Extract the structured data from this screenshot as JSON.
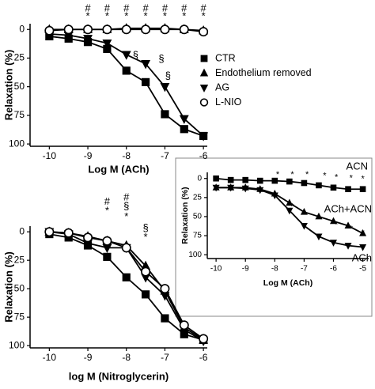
{
  "chart_data": [
    {
      "type": "line",
      "x_label": "Log M (ACh)",
      "y_label": "Relaxation (%)",
      "xlim": [
        -10.5,
        -5.9
      ],
      "xticks": [
        -10,
        -9,
        -8,
        -7,
        -6
      ],
      "ylim": [
        -5,
        102
      ],
      "yticks": [
        0,
        25,
        50,
        75,
        100
      ],
      "y_reversed": true,
      "legend": "right",
      "x": [
        -10,
        -9.5,
        -9,
        -8.5,
        -8,
        -7.5,
        -7,
        -6.5,
        -6
      ],
      "series": [
        {
          "name": "CTR",
          "marker": "square",
          "color": "#000000",
          "values": [
            6,
            8,
            11,
            17,
            36,
            46,
            74,
            87,
            93
          ]
        },
        {
          "name": "Endothelium removed",
          "marker": "triangle-up",
          "color": "#000000",
          "values": [
            0,
            0,
            0,
            0,
            -1,
            -1,
            -1,
            0,
            1
          ]
        },
        {
          "name": "AG",
          "marker": "triangle-down",
          "color": "#000000",
          "values": [
            4,
            5,
            8,
            12,
            22,
            30,
            50,
            78,
            93
          ]
        },
        {
          "name": "L-NIO",
          "marker": "circle",
          "color": "#000000",
          "values": [
            1,
            0,
            0,
            0,
            0,
            0,
            0,
            0,
            2
          ]
        }
      ],
      "annotations": [
        {
          "text": "#",
          "x": -9,
          "y": -18
        },
        {
          "text": "*",
          "x": -9,
          "y": -11
        },
        {
          "text": "#",
          "x": -8.5,
          "y": -18
        },
        {
          "text": "*",
          "x": -8.5,
          "y": -11
        },
        {
          "text": "#",
          "x": -8,
          "y": -18
        },
        {
          "text": "*",
          "x": -8,
          "y": -11
        },
        {
          "text": "#",
          "x": -7.5,
          "y": -18
        },
        {
          "text": "*",
          "x": -7.5,
          "y": -11
        },
        {
          "text": "#",
          "x": -7,
          "y": -18
        },
        {
          "text": "*",
          "x": -7,
          "y": -11
        },
        {
          "text": "#",
          "x": -6.5,
          "y": -18
        },
        {
          "text": "*",
          "x": -6.5,
          "y": -11
        },
        {
          "text": "#",
          "x": -6,
          "y": -18
        },
        {
          "text": "*",
          "x": -6,
          "y": -11
        },
        {
          "text": "§",
          "x": -7.76,
          "y": 23
        },
        {
          "text": "§",
          "x": -7.09,
          "y": 26
        },
        {
          "text": "§",
          "x": -6.92,
          "y": 41
        }
      ]
    },
    {
      "type": "line",
      "x_label": "log M (Nitroglycerin)",
      "y_label": "Relaxation (%)",
      "xlim": [
        -10.5,
        -5.9
      ],
      "xticks": [
        -10,
        -9,
        -8,
        -7,
        -6
      ],
      "ylim": [
        -5,
        102
      ],
      "yticks": [
        0,
        25,
        50,
        75,
        100
      ],
      "y_reversed": true,
      "x": [
        -10,
        -9.5,
        -9,
        -8.5,
        -8,
        -7.5,
        -7,
        -6.5,
        -6
      ],
      "series": [
        {
          "name": "CTR",
          "marker": "square",
          "color": "#000000",
          "values": [
            2,
            5,
            12,
            22,
            40,
            55,
            76,
            90,
            95
          ]
        },
        {
          "name": "Endothelium removed",
          "marker": "triangle-up",
          "color": "#000000",
          "values": [
            0,
            1,
            4,
            8,
            12,
            30,
            52,
            84,
            95
          ]
        },
        {
          "name": "AG",
          "marker": "triangle-down",
          "color": "#000000",
          "values": [
            0,
            2,
            10,
            14,
            14,
            40,
            56,
            86,
            96
          ]
        },
        {
          "name": "L-NIO",
          "marker": "circle",
          "color": "#000000",
          "values": [
            0,
            1,
            5,
            8,
            14,
            35,
            50,
            82,
            94
          ]
        }
      ],
      "annotations": [
        {
          "text": "#",
          "x": -8.5,
          "y": -26
        },
        {
          "text": "*",
          "x": -8.5,
          "y": -18
        },
        {
          "text": "#",
          "x": -8,
          "y": -30
        },
        {
          "text": "§",
          "x": -8,
          "y": -22
        },
        {
          "text": "*",
          "x": -8,
          "y": -13
        },
        {
          "text": "§",
          "x": -7.5,
          "y": -3
        },
        {
          "text": "*",
          "x": -7.5,
          "y": 5
        }
      ]
    },
    {
      "type": "line",
      "x_label": "Log M (ACh)",
      "y_label": "Relaxation (%)",
      "xlim": [
        -10.3,
        -4.8
      ],
      "xticks": [
        -10,
        -9,
        -8,
        -7,
        -6,
        -5
      ],
      "ylim": [
        -8,
        105
      ],
      "yticks": [
        0,
        25,
        50,
        75,
        100
      ],
      "y_reversed": true,
      "x": [
        -10,
        -9.5,
        -9,
        -8.5,
        -8,
        -7.5,
        -7,
        -6.5,
        -6,
        -5.5,
        -5
      ],
      "series": [
        {
          "name": "ACN",
          "marker": "square",
          "color": "#000000",
          "values": [
            0,
            2,
            2,
            3,
            3,
            4,
            6,
            9,
            12,
            14,
            14
          ]
        },
        {
          "name": "ACh+ACN",
          "marker": "triangle-up",
          "color": "#000000",
          "values": [
            12,
            12,
            12,
            14,
            20,
            32,
            44,
            50,
            56,
            62,
            72
          ]
        },
        {
          "name": "ACh",
          "marker": "triangle-down",
          "color": "#000000",
          "values": [
            12,
            12,
            13,
            15,
            22,
            42,
            62,
            76,
            84,
            88,
            90
          ]
        }
      ],
      "annotations": [
        {
          "text": "*",
          "x": -7.9,
          "y": -5
        },
        {
          "text": "*",
          "x": -7.4,
          "y": -5
        },
        {
          "text": "*",
          "x": -6.9,
          "y": -5
        },
        {
          "text": "*",
          "x": -6.3,
          "y": -3
        },
        {
          "text": "*",
          "x": -5.9,
          "y": -1
        },
        {
          "text": "*",
          "x": -5.4,
          "y": 0
        },
        {
          "text": "*",
          "x": -5,
          "y": 1
        },
        {
          "text": "*",
          "x": -7.4,
          "y": 37
        },
        {
          "text": "*",
          "x": -5.9,
          "y": 61
        },
        {
          "text": "*",
          "x": -5.4,
          "y": 66
        },
        {
          "text": "*",
          "x": -5,
          "y": 72
        }
      ]
    }
  ]
}
